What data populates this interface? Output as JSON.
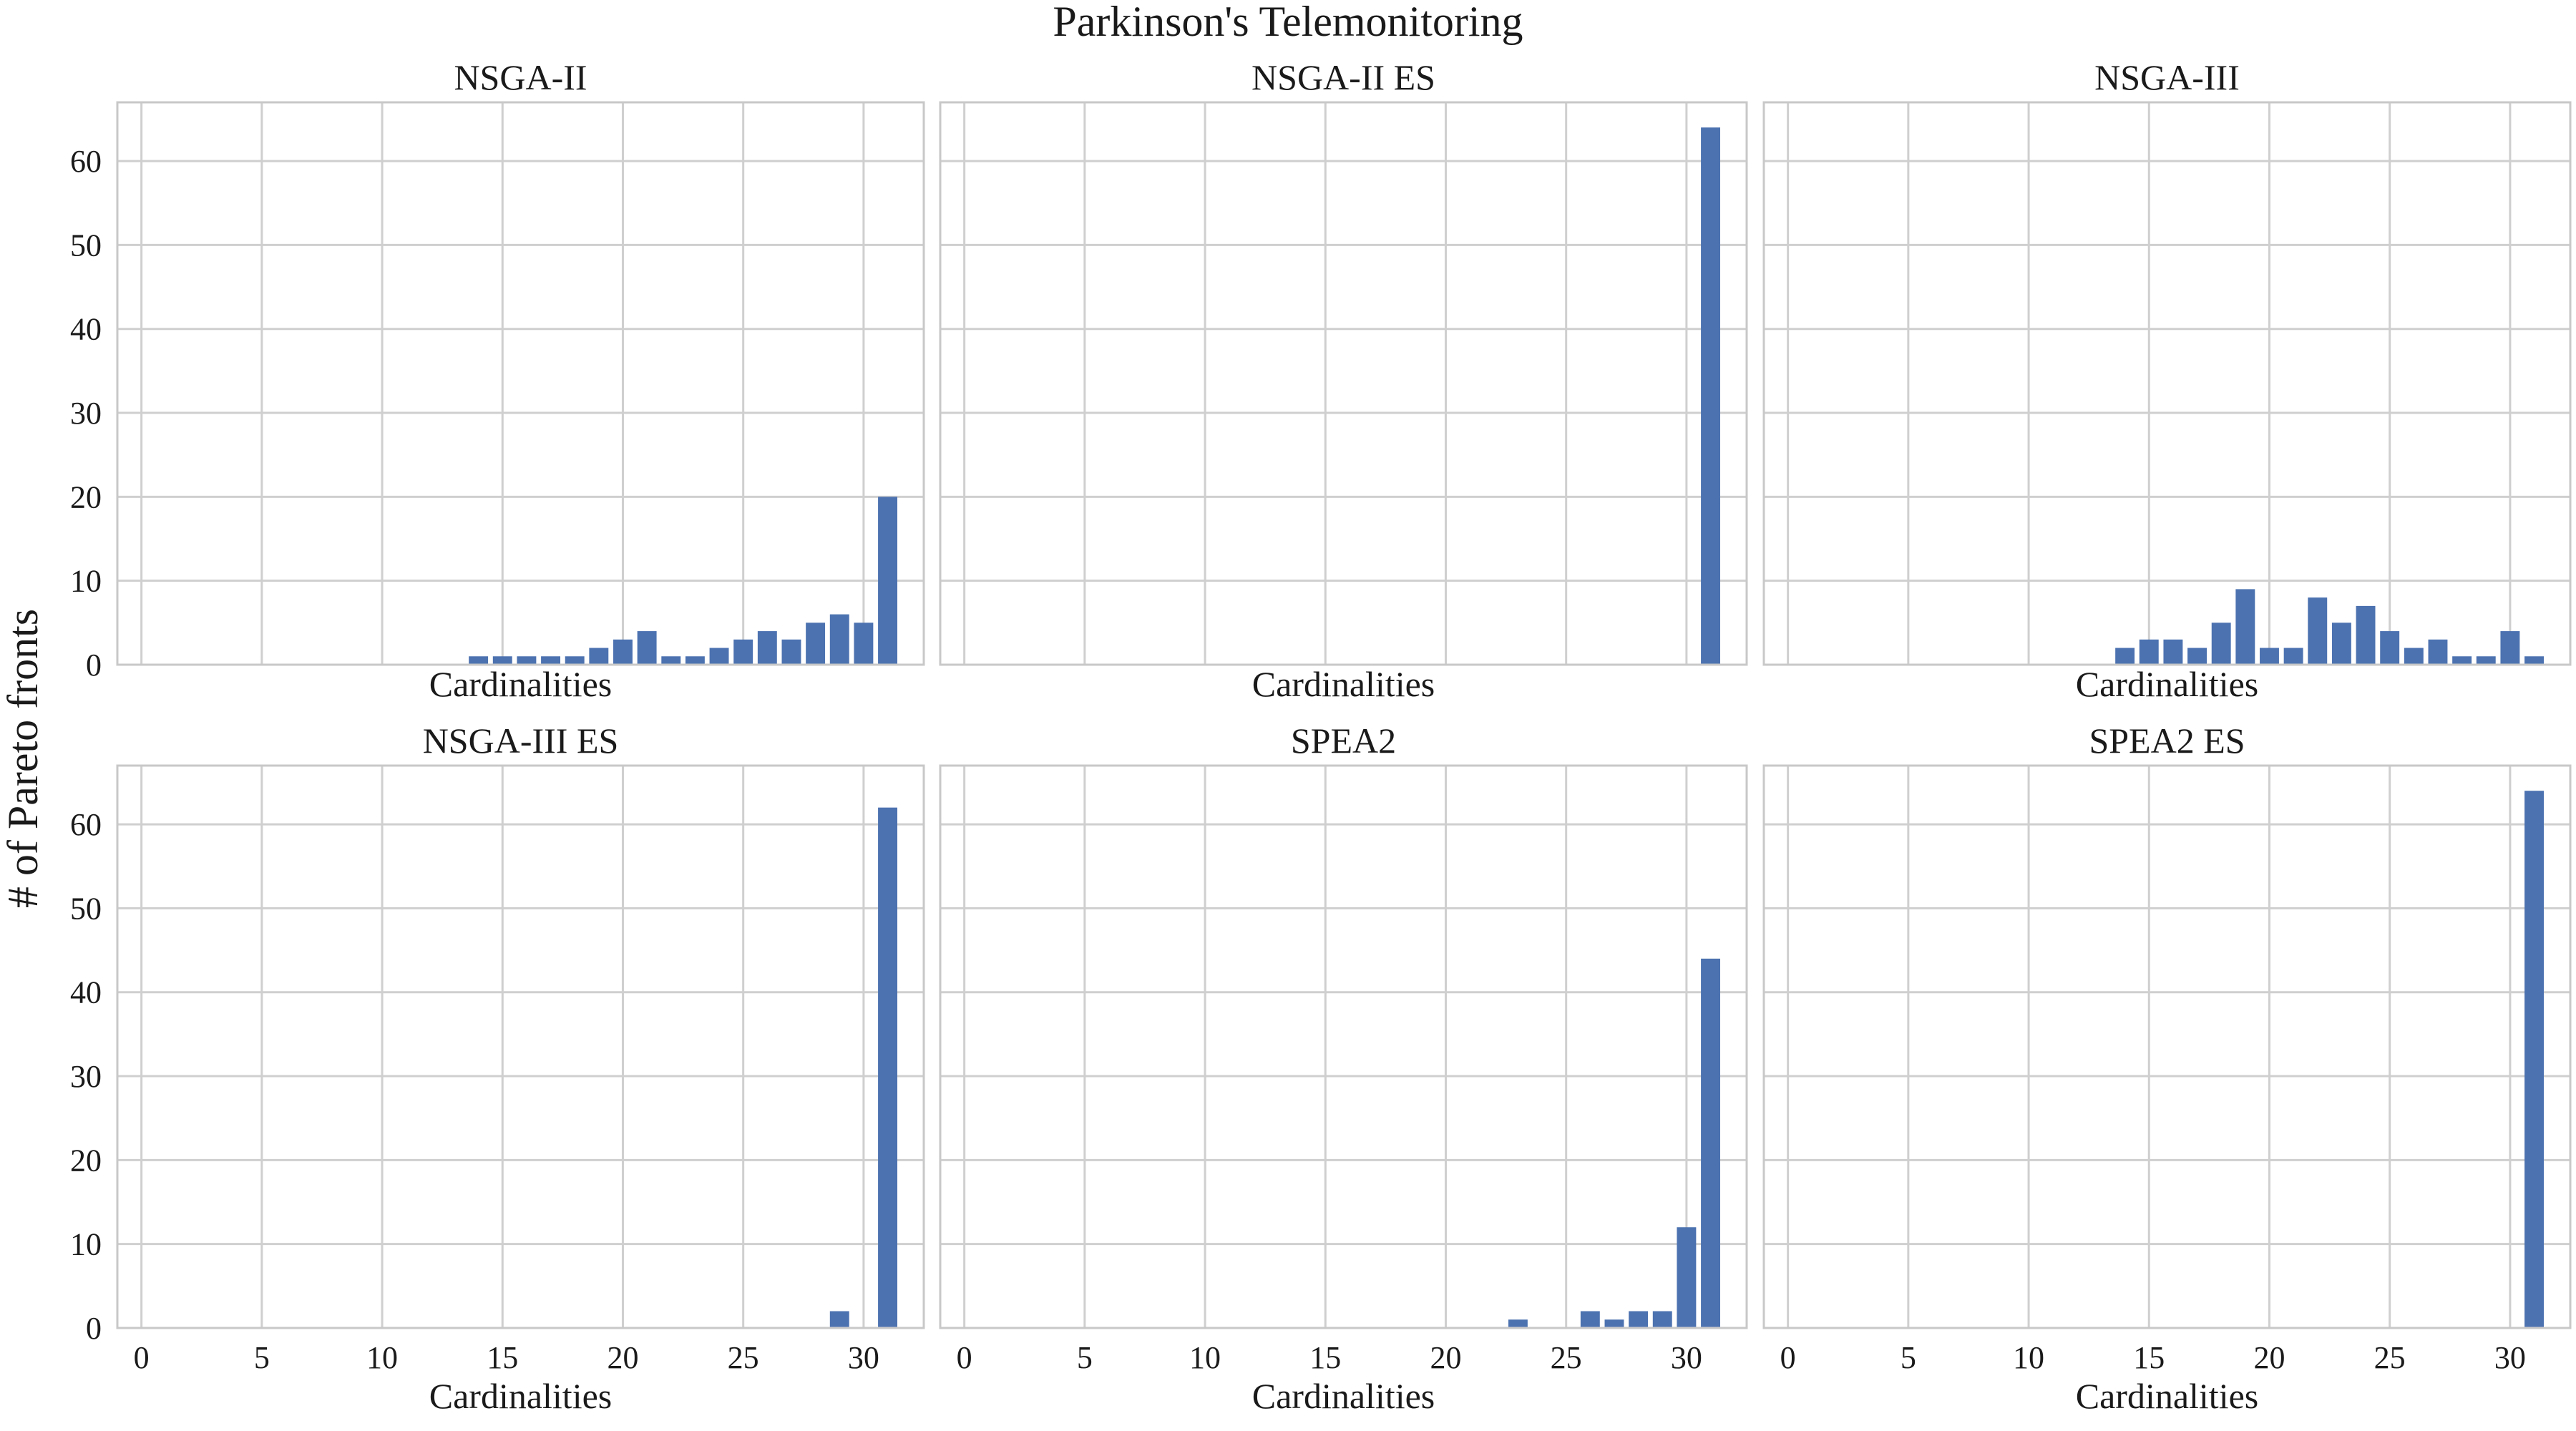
{
  "figure": {
    "title": "Parkinson's Telemonitoring",
    "ylabel": "# of Pareto fronts"
  },
  "colors": {
    "bar": "#4c72b0",
    "grid": "#cfcfcf",
    "frame": "#c8c8c8"
  },
  "chart_data": [
    {
      "type": "bar",
      "title": "NSGA-II",
      "xlabel": "Cardinalities",
      "ylabel": "",
      "xlim": [
        -1,
        32.5
      ],
      "ylim": [
        0,
        67
      ],
      "xticks": [
        0,
        5,
        10,
        15,
        20,
        25,
        30
      ],
      "yticks": [
        0,
        10,
        20,
        30,
        40,
        50,
        60
      ],
      "show_xticks": false,
      "show_yticks": true,
      "grid": true,
      "x": [
        14,
        15,
        16,
        17,
        18,
        19,
        20,
        21,
        22,
        23,
        24,
        25,
        26,
        27,
        28,
        29,
        30,
        31
      ],
      "values": [
        1,
        1,
        1,
        1,
        1,
        2,
        3,
        4,
        1,
        1,
        2,
        3,
        4,
        3,
        5,
        6,
        5,
        20
      ]
    },
    {
      "type": "bar",
      "title": "NSGA-II ES",
      "xlabel": "Cardinalities",
      "ylabel": "",
      "xlim": [
        -1,
        32.5
      ],
      "ylim": [
        0,
        67
      ],
      "xticks": [
        0,
        5,
        10,
        15,
        20,
        25,
        30
      ],
      "yticks": [
        0,
        10,
        20,
        30,
        40,
        50,
        60
      ],
      "show_xticks": false,
      "show_yticks": false,
      "grid": true,
      "x": [
        31
      ],
      "values": [
        64
      ]
    },
    {
      "type": "bar",
      "title": "NSGA-III",
      "xlabel": "Cardinalities",
      "ylabel": "",
      "xlim": [
        -1,
        32.5
      ],
      "ylim": [
        0,
        67
      ],
      "xticks": [
        0,
        5,
        10,
        15,
        20,
        25,
        30
      ],
      "yticks": [
        0,
        10,
        20,
        30,
        40,
        50,
        60
      ],
      "show_xticks": false,
      "show_yticks": false,
      "grid": true,
      "x": [
        14,
        15,
        16,
        17,
        18,
        19,
        20,
        21,
        22,
        23,
        24,
        25,
        26,
        27,
        28,
        29,
        30,
        31
      ],
      "values": [
        2,
        3,
        3,
        2,
        5,
        9,
        2,
        2,
        8,
        5,
        7,
        4,
        2,
        3,
        1,
        1,
        4,
        1
      ]
    },
    {
      "type": "bar",
      "title": "NSGA-III ES",
      "xlabel": "Cardinalities",
      "ylabel": "",
      "xlim": [
        -1,
        32.5
      ],
      "ylim": [
        0,
        67
      ],
      "xticks": [
        0,
        5,
        10,
        15,
        20,
        25,
        30
      ],
      "yticks": [
        0,
        10,
        20,
        30,
        40,
        50,
        60
      ],
      "show_xticks": true,
      "show_yticks": true,
      "grid": true,
      "x": [
        29,
        31
      ],
      "values": [
        2,
        62
      ]
    },
    {
      "type": "bar",
      "title": "SPEA2",
      "xlabel": "Cardinalities",
      "ylabel": "",
      "xlim": [
        -1,
        32.5
      ],
      "ylim": [
        0,
        67
      ],
      "xticks": [
        0,
        5,
        10,
        15,
        20,
        25,
        30
      ],
      "yticks": [
        0,
        10,
        20,
        30,
        40,
        50,
        60
      ],
      "show_xticks": true,
      "show_yticks": false,
      "grid": true,
      "x": [
        23,
        26,
        27,
        28,
        29,
        30,
        31
      ],
      "values": [
        1,
        2,
        1,
        2,
        2,
        12,
        44
      ]
    },
    {
      "type": "bar",
      "title": "SPEA2 ES",
      "xlabel": "Cardinalities",
      "ylabel": "",
      "xlim": [
        -1,
        32.5
      ],
      "ylim": [
        0,
        67
      ],
      "xticks": [
        0,
        5,
        10,
        15,
        20,
        25,
        30
      ],
      "yticks": [
        0,
        10,
        20,
        30,
        40,
        50,
        60
      ],
      "show_xticks": true,
      "show_yticks": false,
      "grid": true,
      "x": [
        31
      ],
      "values": [
        64
      ]
    }
  ]
}
